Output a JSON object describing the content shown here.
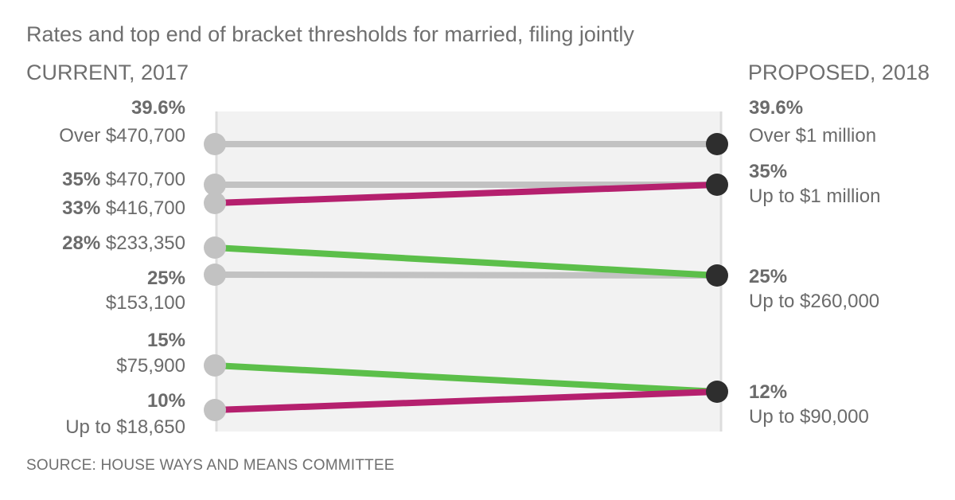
{
  "title": "Rates and top end of bracket thresholds for married, filing jointly",
  "headers": {
    "left": "CURRENT, 2017",
    "right": "PROPOSED, 2018"
  },
  "source": "SOURCE: HOUSE WAYS AND MEANS COMMITTEE",
  "colors": {
    "gray": "#c2c2c2",
    "green": "#5cbf4a",
    "magenta": "#b5206e",
    "dark_dot": "#2e2e2e",
    "panel": "#f2f2f2"
  },
  "chart_data": {
    "type": "slope",
    "x": [
      "CURRENT, 2017",
      "PROPOSED, 2018"
    ],
    "left_brackets": [
      {
        "rate": "39.6%",
        "threshold": "Over $470,700",
        "rate_value": 39.6
      },
      {
        "rate": "35%",
        "threshold": "$470,700",
        "rate_value": 35
      },
      {
        "rate": "33%",
        "threshold": "$416,700",
        "rate_value": 33
      },
      {
        "rate": "28%",
        "threshold": "$233,350",
        "rate_value": 28
      },
      {
        "rate": "25%",
        "threshold": "$153,100",
        "rate_value": 25
      },
      {
        "rate": "15%",
        "threshold": "$75,900",
        "rate_value": 15
      },
      {
        "rate": "10%",
        "threshold": "Up to $18,650",
        "rate_value": 10
      }
    ],
    "right_brackets": [
      {
        "rate": "39.6%",
        "threshold": "Over $1 million",
        "rate_value": 39.6
      },
      {
        "rate": "35%",
        "threshold": "Up to $1 million",
        "rate_value": 35
      },
      {
        "rate": "25%",
        "threshold": "Up to $260,000",
        "rate_value": 25
      },
      {
        "rate": "12%",
        "threshold": "Up to $90,000",
        "rate_value": 12
      }
    ],
    "lines": [
      {
        "from": "39.6%",
        "to": "39.6%",
        "color": "gray"
      },
      {
        "from": "35%",
        "to": "35%",
        "color": "gray"
      },
      {
        "from": "33%",
        "to": "35%",
        "color": "magenta"
      },
      {
        "from": "28%",
        "to": "25%",
        "color": "green"
      },
      {
        "from": "25%",
        "to": "25%",
        "color": "gray"
      },
      {
        "from": "15%",
        "to": "12%",
        "color": "green"
      },
      {
        "from": "10%",
        "to": "12%",
        "color": "magenta"
      }
    ]
  }
}
